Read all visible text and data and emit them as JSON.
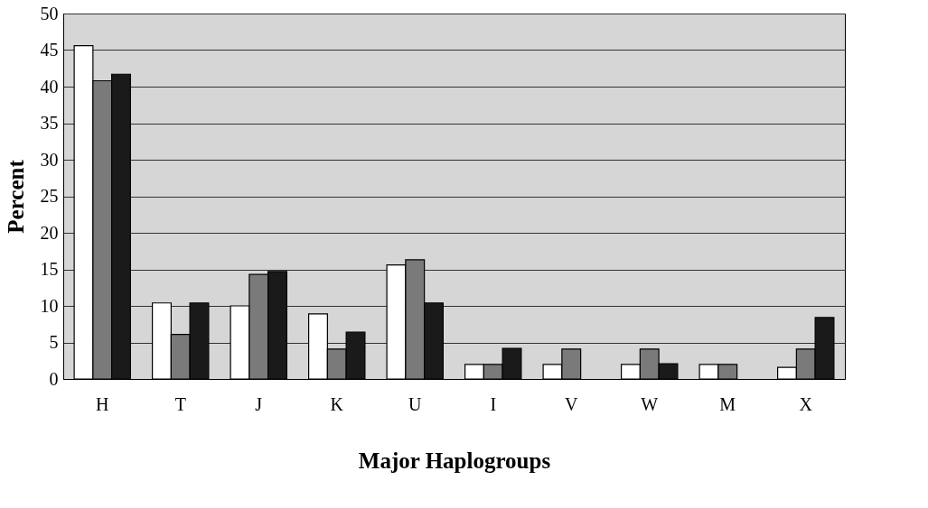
{
  "chart_data": {
    "type": "bar",
    "xlabel": "Major Haplogroups",
    "ylabel": "Percent",
    "categories": [
      "H",
      "T",
      "J",
      "K",
      "U",
      "I",
      "V",
      "W",
      "M",
      "X"
    ],
    "series": [
      {
        "color": "#ffffff",
        "values": [
          45.6,
          10.4,
          10.0,
          8.9,
          15.6,
          2.0,
          2.0,
          2.0,
          2.0,
          1.6
        ]
      },
      {
        "color": "#7a7a7a",
        "values": [
          40.8,
          6.1,
          14.3,
          4.1,
          16.3,
          2.0,
          4.1,
          4.1,
          2.0,
          4.1
        ]
      },
      {
        "color": "#1a1a1a",
        "values": [
          41.7,
          10.4,
          14.7,
          6.4,
          10.4,
          4.2,
          null,
          2.1,
          null,
          8.4
        ]
      }
    ],
    "ylim": [
      0,
      50
    ],
    "yticks": [
      0,
      5,
      10,
      15,
      20,
      25,
      30,
      35,
      40,
      45,
      50
    ],
    "grid": "y"
  }
}
